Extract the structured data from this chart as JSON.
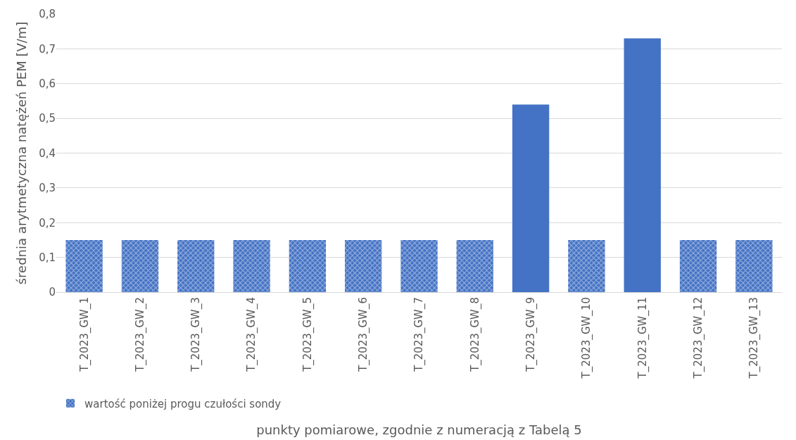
{
  "chart_data": {
    "type": "bar",
    "xlabel": "punkty pomiarowe, zgodnie z numeracją z Tabelą 5",
    "ylabel": "średnia arytmetyczna natężeń PEM [V/m]",
    "categories": [
      "T_2023_GW_1",
      "T_2023_GW_2",
      "T_2023_GW_3",
      "T_2023_GW_4",
      "T_2023_GW_5",
      "T_2023_GW_6",
      "T_2023_GW_7",
      "T_2023_GW_8",
      "T_2023_GW_9",
      "T_2023_GW_10",
      "T_2023_GW_11",
      "T_2023_GW_12",
      "T_2023_GW_13"
    ],
    "series": [
      {
        "name": "wartość poniżej progu czułości sondy",
        "color": "#4472c4",
        "values": [
          0.15,
          0.15,
          0.15,
          0.15,
          0.15,
          0.15,
          0.15,
          0.15,
          null,
          0.15,
          null,
          0.15,
          0.15
        ]
      },
      {
        "color": "#4472c4",
        "values": [
          null,
          null,
          null,
          null,
          null,
          null,
          null,
          null,
          0.54,
          null,
          0.73,
          null,
          null
        ]
      }
    ],
    "ylim": [
      0,
      0.8
    ],
    "yticks": [
      0,
      {
        "value": 0.1,
        "label": "0,1"
      },
      {
        "value": 0.2,
        "label": "0,2"
      },
      {
        "value": 0.3,
        "label": "0,3"
      },
      {
        "value": 0.4,
        "label": "0,4"
      },
      {
        "value": 0.5,
        "label": "0,5"
      },
      {
        "value": 0.6,
        "label": "0,6"
      },
      {
        "value": 0.7,
        "label": "0,7"
      },
      {
        "value": 0.8,
        "label": "0,8"
      }
    ],
    "grid": "y",
    "legend": "bottom left"
  }
}
